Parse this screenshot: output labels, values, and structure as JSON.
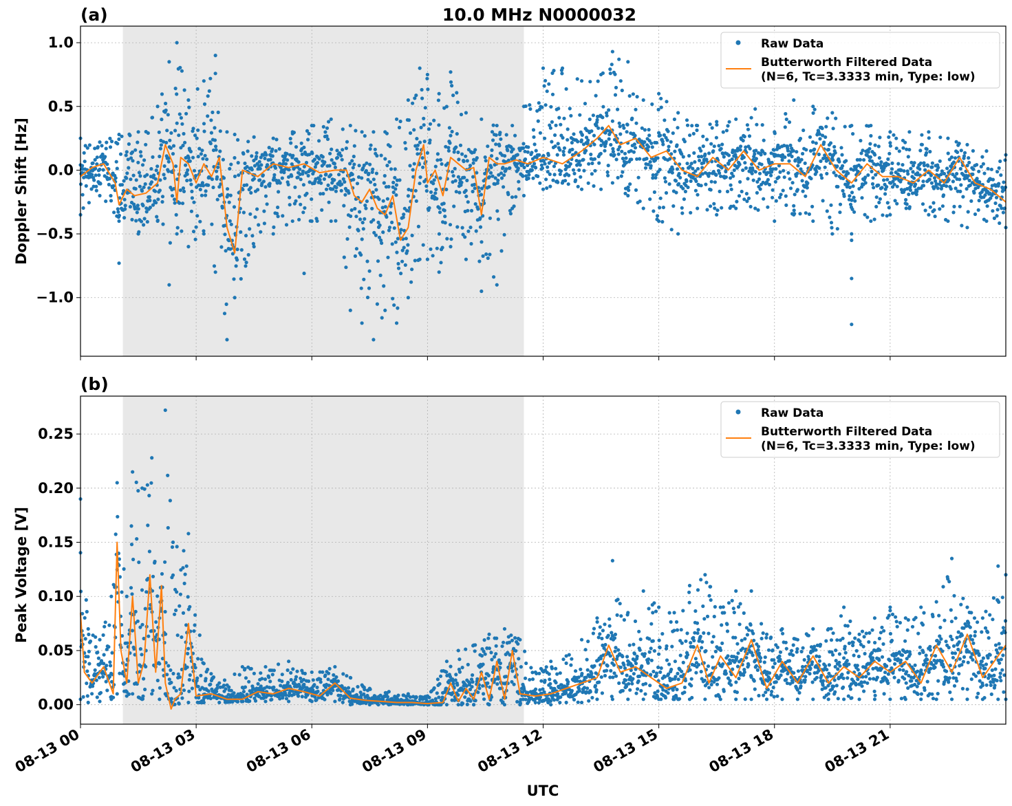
{
  "figure": {
    "title": "10.0 MHz N0000032",
    "xlabel": "UTC",
    "x_tick_labels": [
      "08-13 00",
      "08-13 03",
      "08-13 06",
      "08-13 09",
      "08-13 12",
      "08-13 15",
      "08-13 18",
      "08-13 21"
    ],
    "colors": {
      "raw": "#1f77b4",
      "filtered": "#ff7f0e",
      "shade": "#e8e8e8",
      "grid": "#b0b0b0"
    },
    "legend": {
      "raw_label": "Raw Data",
      "filtered_label_line1": "Butterworth Filtered Data",
      "filtered_label_line2": "(N=6, Tc=3.3333 min, Type: low)"
    },
    "shaded_interval_hours": [
      1.1,
      11.5
    ]
  },
  "chart_data": [
    {
      "type": "scatter",
      "panel_label": "(a)",
      "ylabel": "Doppler Shift [Hz]",
      "xlim_hours": [
        0,
        24
      ],
      "ylim": [
        -1.46,
        1.13
      ],
      "yticks": [
        1.0,
        0.5,
        0.0,
        -0.5,
        -1.0
      ],
      "ytick_labels": [
        "1.0",
        "0.5",
        "0.0",
        "−0.5",
        "−1.0"
      ],
      "legend_position": "top-right",
      "grid": true,
      "series": [
        {
          "name": "Raw Data",
          "style": "points",
          "x_hours": [
            0,
            0.5,
            1.0,
            1.5,
            2.0,
            2.3,
            2.5,
            2.8,
            3.2,
            3.5,
            3.8,
            4.0,
            4.5,
            5.0,
            5.5,
            6.0,
            6.5,
            7.0,
            7.3,
            7.6,
            7.9,
            8.2,
            8.5,
            8.8,
            9.0,
            9.3,
            9.6,
            10.0,
            10.4,
            10.8,
            11.2,
            11.5,
            12.0,
            12.5,
            13.0,
            13.5,
            13.8,
            14.2,
            14.6,
            15.0,
            15.5,
            16.0,
            16.5,
            17.0,
            17.5,
            18.0,
            18.5,
            19.0,
            19.5,
            20.0,
            20.5,
            21.0,
            21.5,
            22.0,
            22.5,
            23.0,
            23.5,
            24.0
          ],
          "y_min": [
            -0.35,
            -0.2,
            -0.4,
            -0.5,
            -0.4,
            -0.9,
            -0.5,
            -0.6,
            -0.5,
            -0.8,
            -1.33,
            -1.0,
            -0.6,
            -0.5,
            -0.4,
            -0.4,
            -0.4,
            -1.1,
            -1.2,
            -1.33,
            -1.1,
            -1.2,
            -1.0,
            -0.7,
            -0.7,
            -0.8,
            -0.6,
            -0.7,
            -0.95,
            -0.9,
            -0.3,
            -0.2,
            -0.15,
            -0.1,
            -0.15,
            -0.15,
            -0.1,
            -0.2,
            -0.3,
            -0.4,
            -0.5,
            -0.3,
            -0.35,
            -0.3,
            -0.3,
            -0.4,
            -0.35,
            -0.4,
            -0.5,
            -0.5,
            -0.4,
            -0.35,
            -0.3,
            -0.35,
            -0.4,
            -0.45,
            -0.4,
            -0.45
          ],
          "y_max": [
            0.25,
            0.22,
            0.28,
            0.3,
            0.5,
            0.85,
            1.0,
            0.55,
            0.7,
            0.9,
            0.3,
            0.28,
            0.26,
            0.25,
            0.3,
            0.35,
            0.4,
            0.35,
            0.3,
            0.3,
            0.3,
            0.4,
            0.55,
            0.8,
            0.75,
            0.6,
            0.77,
            0.45,
            0.4,
            0.35,
            0.35,
            0.5,
            0.8,
            0.8,
            0.7,
            0.75,
            0.93,
            0.85,
            0.55,
            0.6,
            0.45,
            0.35,
            0.38,
            0.4,
            0.48,
            0.3,
            0.55,
            0.5,
            0.45,
            0.35,
            0.35,
            0.3,
            0.3,
            0.3,
            0.25,
            0.2,
            0.15,
            0.12
          ],
          "outliers": [
            [
              20.0,
              -0.55
            ],
            [
              20.0,
              -0.85
            ],
            [
              20.0,
              -1.21
            ],
            [
              1.0,
              -0.73
            ],
            [
              5.8,
              -0.81
            ]
          ]
        },
        {
          "name": "Butterworth Filtered Data (N=6, Tc=3.3333 min, Type: low)",
          "style": "line",
          "x_hours": [
            0,
            0.3,
            0.6,
            0.9,
            1.0,
            1.2,
            1.4,
            1.7,
            2.0,
            2.2,
            2.4,
            2.5,
            2.6,
            2.8,
            3.0,
            3.2,
            3.4,
            3.6,
            3.8,
            4.0,
            4.2,
            4.6,
            5.0,
            5.4,
            5.8,
            6.2,
            6.6,
            6.9,
            7.1,
            7.3,
            7.5,
            7.7,
            7.9,
            8.1,
            8.3,
            8.5,
            8.7,
            8.9,
            9.0,
            9.2,
            9.4,
            9.6,
            9.8,
            10.0,
            10.2,
            10.4,
            10.6,
            10.8,
            11.0,
            11.3,
            11.6,
            12.0,
            12.5,
            13.0,
            13.4,
            13.7,
            14.0,
            14.4,
            14.8,
            15.2,
            15.6,
            16.0,
            16.4,
            16.8,
            17.2,
            17.6,
            18.0,
            18.4,
            18.8,
            19.2,
            19.6,
            20.0,
            20.4,
            20.8,
            21.2,
            21.6,
            22.0,
            22.4,
            22.8,
            23.2,
            23.6,
            24.0
          ],
          "y": [
            -0.05,
            0.02,
            0.05,
            -0.1,
            -0.27,
            -0.15,
            -0.2,
            -0.18,
            -0.1,
            0.2,
            0.05,
            -0.25,
            0.1,
            0.05,
            -0.1,
            0.05,
            -0.05,
            0.1,
            -0.45,
            -0.65,
            0.0,
            -0.05,
            0.05,
            0.02,
            0.05,
            -0.02,
            0.0,
            0.0,
            -0.2,
            -0.25,
            -0.15,
            -0.3,
            -0.35,
            -0.2,
            -0.55,
            -0.45,
            0.0,
            0.2,
            -0.1,
            0.0,
            -0.2,
            0.1,
            0.05,
            0.0,
            0.02,
            -0.35,
            0.1,
            0.05,
            0.05,
            0.08,
            0.05,
            0.1,
            0.05,
            0.15,
            0.25,
            0.35,
            0.2,
            0.25,
            0.1,
            0.15,
            0.0,
            -0.05,
            0.1,
            0.0,
            0.15,
            0.0,
            0.05,
            0.05,
            -0.05,
            0.2,
            0.0,
            -0.1,
            0.05,
            -0.05,
            -0.05,
            -0.1,
            0.0,
            -0.1,
            0.1,
            -0.1,
            -0.15,
            -0.25
          ]
        }
      ]
    },
    {
      "type": "scatter",
      "panel_label": "(b)",
      "ylabel": "Peak Voltage [V]",
      "xlim_hours": [
        0,
        24
      ],
      "ylim": [
        -0.018,
        0.285
      ],
      "yticks": [
        0.0,
        0.05,
        0.1,
        0.15,
        0.2,
        0.25
      ],
      "ytick_labels": [
        "0.00",
        "0.05",
        "0.10",
        "0.15",
        "0.20",
        "0.25"
      ],
      "legend_position": "top-right",
      "grid": true,
      "series": [
        {
          "name": "Raw Data",
          "style": "points",
          "x_hours": [
            0,
            0.2,
            0.5,
            0.8,
            0.95,
            1.2,
            1.35,
            1.6,
            1.85,
            2.05,
            2.2,
            2.4,
            2.8,
            3.2,
            3.6,
            4.2,
            4.8,
            5.4,
            6.0,
            6.6,
            7.0,
            7.5,
            8.0,
            8.5,
            9.0,
            9.5,
            9.8,
            10.2,
            10.6,
            11.0,
            11.4,
            11.8,
            12.2,
            12.6,
            13.0,
            13.4,
            13.8,
            14.2,
            14.6,
            15.0,
            15.4,
            15.8,
            16.2,
            16.6,
            17.0,
            17.4,
            17.8,
            18.2,
            18.6,
            19.0,
            19.4,
            19.8,
            20.2,
            20.6,
            21.0,
            21.4,
            21.8,
            22.2,
            22.6,
            23.0,
            23.4,
            23.8,
            24.0
          ],
          "y_min": [
            0.005,
            0.002,
            0.003,
            0.005,
            0.01,
            0.008,
            0.01,
            0.005,
            0.01,
            0.005,
            0.01,
            0.0,
            0.002,
            0.002,
            0.002,
            0.003,
            0.003,
            0.003,
            0.003,
            0.003,
            0.0,
            0.0,
            0.0,
            0.0,
            0.0,
            0.0,
            0.0,
            0.0,
            0.0,
            0.0,
            0.0,
            0.002,
            0.0,
            0.002,
            0.002,
            0.005,
            0.005,
            0.005,
            0.005,
            0.005,
            0.005,
            0.005,
            0.005,
            0.005,
            0.005,
            0.005,
            0.005,
            0.005,
            0.005,
            0.005,
            0.005,
            0.005,
            0.005,
            0.005,
            0.005,
            0.005,
            0.005,
            0.005,
            0.005,
            0.005,
            0.005,
            0.005,
            0.005
          ],
          "y_max": [
            0.19,
            0.07,
            0.06,
            0.1,
            0.205,
            0.1,
            0.215,
            0.2,
            0.228,
            0.08,
            0.272,
            0.15,
            0.158,
            0.038,
            0.02,
            0.035,
            0.035,
            0.04,
            0.03,
            0.035,
            0.025,
            0.015,
            0.012,
            0.01,
            0.008,
            0.04,
            0.05,
            0.055,
            0.065,
            0.07,
            0.06,
            0.03,
            0.04,
            0.045,
            0.06,
            0.08,
            0.133,
            0.085,
            0.105,
            0.09,
            0.085,
            0.11,
            0.12,
            0.09,
            0.105,
            0.105,
            0.065,
            0.07,
            0.06,
            0.07,
            0.07,
            0.09,
            0.065,
            0.08,
            0.09,
            0.08,
            0.09,
            0.095,
            0.135,
            0.09,
            0.08,
            0.128,
            0.12
          ]
        },
        {
          "name": "Butterworth Filtered Data (N=6, Tc=3.3333 min, Type: low)",
          "style": "line",
          "x_hours": [
            0,
            0.1,
            0.3,
            0.6,
            0.85,
            0.95,
            1.05,
            1.2,
            1.35,
            1.5,
            1.65,
            1.8,
            1.95,
            2.1,
            2.2,
            2.35,
            2.45,
            2.6,
            2.8,
            3.0,
            3.4,
            3.8,
            4.2,
            4.6,
            5.0,
            5.4,
            5.8,
            6.2,
            6.6,
            7.0,
            7.4,
            7.8,
            8.2,
            8.6,
            9.0,
            9.4,
            9.6,
            9.8,
            10.0,
            10.2,
            10.4,
            10.6,
            10.8,
            11.0,
            11.2,
            11.4,
            11.8,
            12.2,
            12.6,
            13.0,
            13.4,
            13.7,
            14.0,
            14.4,
            14.8,
            15.2,
            15.6,
            16.0,
            16.3,
            16.6,
            17.0,
            17.4,
            17.8,
            18.2,
            18.6,
            19.0,
            19.4,
            19.8,
            20.2,
            20.6,
            21.0,
            21.4,
            21.8,
            22.2,
            22.6,
            23.0,
            23.4,
            23.8,
            24.0
          ],
          "y": [
            0.085,
            0.03,
            0.02,
            0.035,
            0.01,
            0.15,
            0.05,
            0.02,
            0.1,
            0.02,
            0.04,
            0.12,
            0.03,
            0.11,
            0.02,
            -0.004,
            0.005,
            0.01,
            0.075,
            0.008,
            0.01,
            0.005,
            0.005,
            0.012,
            0.01,
            0.015,
            0.012,
            0.008,
            0.02,
            0.006,
            0.004,
            0.003,
            0.002,
            0.002,
            0.001,
            0.002,
            0.02,
            0.003,
            0.015,
            0.005,
            0.03,
            0.005,
            0.04,
            0.005,
            0.05,
            0.01,
            0.008,
            0.01,
            0.015,
            0.02,
            0.025,
            0.055,
            0.03,
            0.035,
            0.025,
            0.015,
            0.02,
            0.055,
            0.02,
            0.045,
            0.025,
            0.06,
            0.015,
            0.04,
            0.02,
            0.045,
            0.02,
            0.035,
            0.025,
            0.04,
            0.03,
            0.04,
            0.02,
            0.055,
            0.03,
            0.065,
            0.025,
            0.045,
            0.055
          ]
        }
      ]
    }
  ]
}
